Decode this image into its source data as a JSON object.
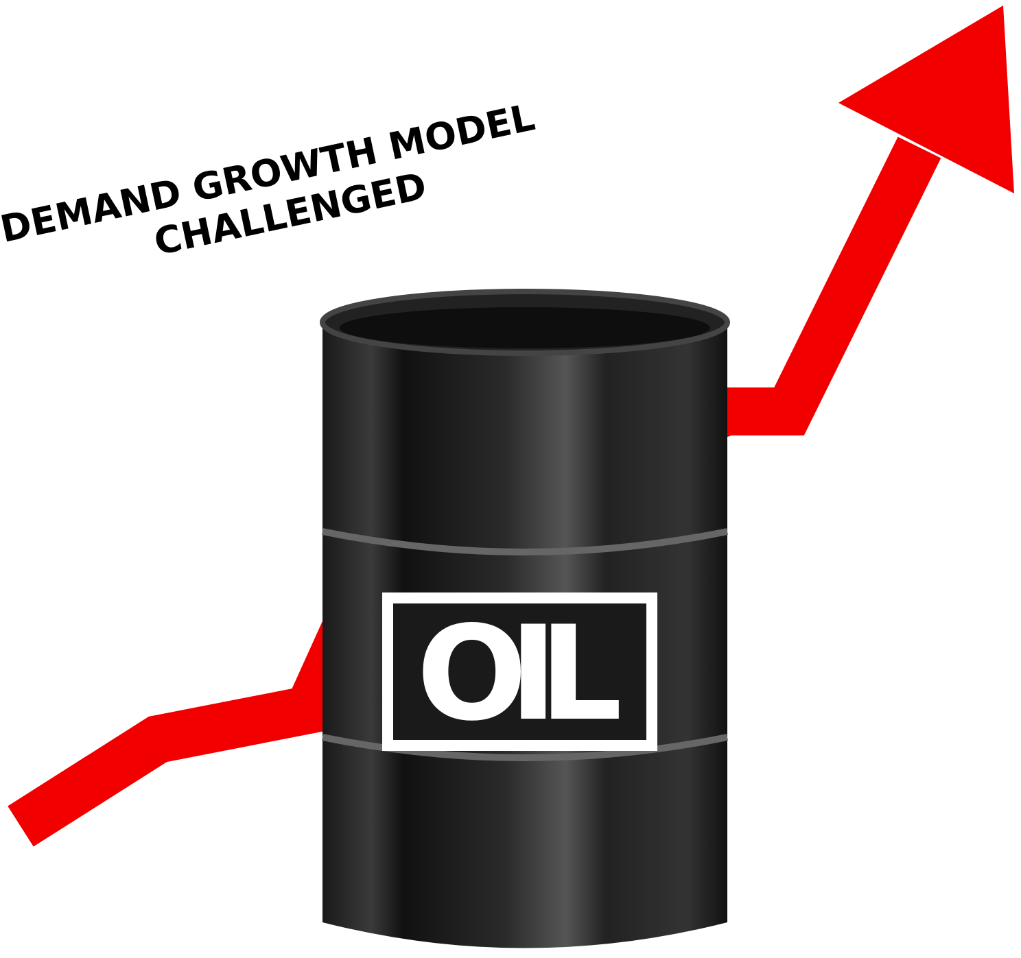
{
  "title": {
    "lines": [
      "DEMAND GROWTH MODEL",
      "CHALLENGED"
    ]
  },
  "barrel": {
    "label": "OIL"
  }
}
